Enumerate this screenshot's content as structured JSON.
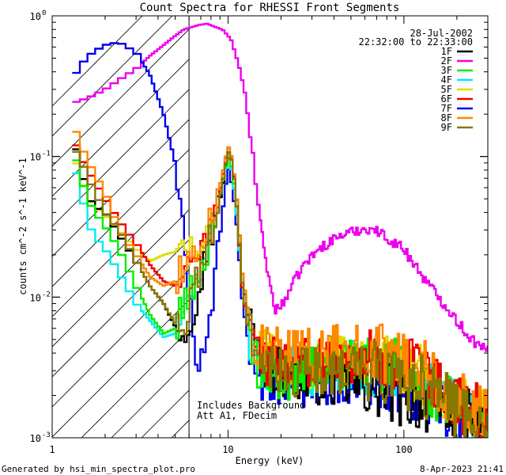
{
  "chart_data": {
    "type": "line",
    "title": "Count Spectra for RHESSI Front Segments",
    "xlabel": "Energy (keV)",
    "ylabel": "counts cm^-2 s^-1 keV^-1",
    "xscale": "log",
    "yscale": "log",
    "xlim": [
      1.0,
      300.0
    ],
    "ylim": [
      0.001,
      1.0
    ],
    "x_tick_labels": [
      {
        "value": 1,
        "label": "1"
      },
      {
        "value": 10,
        "label": "10"
      },
      {
        "value": 100,
        "label": "100"
      }
    ],
    "y_tick_labels": [
      {
        "value": 1,
        "base": "10",
        "exp": "0"
      },
      {
        "value": 0.1,
        "base": "10",
        "exp": "-1"
      },
      {
        "value": 0.01,
        "base": "10",
        "exp": "-2"
      },
      {
        "value": 0.001,
        "base": "10",
        "exp": "-3"
      }
    ],
    "date": "28-Jul-2002",
    "time_range": "22:32:00 to 22:33:00",
    "attenuator_boundary_keV": 6.0,
    "annotations": [
      "Includes Background",
      "Att A1, FDecim"
    ],
    "legend_position": "top-right",
    "series": [
      {
        "name": "1F",
        "color": "#000000",
        "anchors": [
          [
            1.3,
            0.15
          ],
          [
            1.45,
            0.08
          ],
          [
            1.7,
            0.045
          ],
          [
            2.0,
            0.04
          ],
          [
            2.4,
            0.028
          ],
          [
            3.0,
            0.018
          ],
          [
            3.6,
            0.012
          ],
          [
            4.3,
            0.009
          ],
          [
            5.0,
            0.0062
          ],
          [
            5.6,
            0.0055
          ],
          [
            6.5,
            0.009
          ],
          [
            7.5,
            0.02
          ],
          [
            8.5,
            0.035
          ],
          [
            9.3,
            0.06
          ],
          [
            10.0,
            0.11
          ],
          [
            10.6,
            0.09
          ],
          [
            11.3,
            0.045
          ],
          [
            12.0,
            0.015
          ],
          [
            13.0,
            0.007
          ],
          [
            14.5,
            0.004
          ],
          [
            17.0,
            0.0032
          ],
          [
            22.0,
            0.0028
          ],
          [
            30.0,
            0.0026
          ],
          [
            40.0,
            0.0025
          ],
          [
            60.0,
            0.0023
          ],
          [
            90.0,
            0.002
          ],
          [
            130.0,
            0.0018
          ],
          [
            180.0,
            0.0016
          ],
          [
            250.0,
            0.0014
          ]
        ]
      },
      {
        "name": "2F",
        "color": "#ee00ee",
        "anchors": [
          [
            1.3,
            0.24
          ],
          [
            1.45,
            0.25
          ],
          [
            1.7,
            0.27
          ],
          [
            2.0,
            0.3
          ],
          [
            2.4,
            0.35
          ],
          [
            3.0,
            0.42
          ],
          [
            3.6,
            0.52
          ],
          [
            4.3,
            0.62
          ],
          [
            5.0,
            0.72
          ],
          [
            5.6,
            0.8
          ],
          [
            6.0,
            0.82
          ],
          [
            6.8,
            0.86
          ],
          [
            7.6,
            0.88
          ],
          [
            8.3,
            0.84
          ],
          [
            9.3,
            0.8
          ],
          [
            10.4,
            0.68
          ],
          [
            11.5,
            0.45
          ],
          [
            12.5,
            0.28
          ],
          [
            13.5,
            0.13
          ],
          [
            14.5,
            0.06
          ],
          [
            15.5,
            0.03
          ],
          [
            16.8,
            0.015
          ],
          [
            18.5,
            0.0082
          ],
          [
            20.0,
            0.0085
          ],
          [
            23.0,
            0.012
          ],
          [
            27.0,
            0.017
          ],
          [
            33.0,
            0.022
          ],
          [
            42.0,
            0.027
          ],
          [
            55.0,
            0.03
          ],
          [
            65.0,
            0.031
          ],
          [
            75.0,
            0.028
          ],
          [
            100.0,
            0.022
          ],
          [
            140.0,
            0.012
          ],
          [
            180.0,
            0.0082
          ],
          [
            220.0,
            0.0058
          ],
          [
            270.0,
            0.0044
          ],
          [
            300.0,
            0.0041
          ]
        ]
      },
      {
        "name": "3F",
        "color": "#00ee00",
        "anchors": [
          [
            1.3,
            0.12
          ],
          [
            1.45,
            0.07
          ],
          [
            1.7,
            0.042
          ],
          [
            2.0,
            0.032
          ],
          [
            2.4,
            0.022
          ],
          [
            3.0,
            0.012
          ],
          [
            3.6,
            0.0075
          ],
          [
            4.3,
            0.0055
          ],
          [
            5.0,
            0.006
          ],
          [
            5.6,
            0.009
          ],
          [
            6.5,
            0.012
          ],
          [
            7.5,
            0.02
          ],
          [
            8.5,
            0.04
          ],
          [
            9.3,
            0.065
          ],
          [
            10.0,
            0.1
          ],
          [
            10.6,
            0.08
          ],
          [
            11.3,
            0.04
          ],
          [
            12.0,
            0.012
          ],
          [
            13.0,
            0.006
          ],
          [
            14.5,
            0.0035
          ],
          [
            17.0,
            0.003
          ],
          [
            22.0,
            0.0028
          ],
          [
            30.0,
            0.003
          ],
          [
            40.0,
            0.0032
          ],
          [
            60.0,
            0.0035
          ],
          [
            90.0,
            0.0032
          ],
          [
            130.0,
            0.0024
          ],
          [
            180.0,
            0.0018
          ],
          [
            250.0,
            0.0014
          ]
        ]
      },
      {
        "name": "4F",
        "color": "#00eeee",
        "anchors": [
          [
            1.3,
            0.1
          ],
          [
            1.45,
            0.055
          ],
          [
            1.7,
            0.028
          ],
          [
            2.0,
            0.022
          ],
          [
            2.4,
            0.015
          ],
          [
            3.0,
            0.009
          ],
          [
            3.6,
            0.0068
          ],
          [
            4.3,
            0.0052
          ],
          [
            5.0,
            0.0055
          ],
          [
            5.6,
            0.008
          ],
          [
            6.5,
            0.012
          ],
          [
            7.5,
            0.022
          ],
          [
            8.5,
            0.04
          ],
          [
            9.3,
            0.06
          ],
          [
            10.0,
            0.1
          ],
          [
            10.6,
            0.075
          ],
          [
            11.3,
            0.035
          ],
          [
            12.0,
            0.012
          ],
          [
            13.0,
            0.006
          ],
          [
            14.5,
            0.0038
          ],
          [
            17.0,
            0.003
          ],
          [
            22.0,
            0.003
          ],
          [
            30.0,
            0.003
          ],
          [
            40.0,
            0.0033
          ],
          [
            60.0,
            0.0032
          ],
          [
            90.0,
            0.003
          ],
          [
            130.0,
            0.0024
          ],
          [
            180.0,
            0.0018
          ],
          [
            250.0,
            0.0014
          ]
        ]
      },
      {
        "name": "5F",
        "color": "#dddd00",
        "anchors": [
          [
            1.3,
            0.11
          ],
          [
            1.45,
            0.07
          ],
          [
            1.7,
            0.045
          ],
          [
            2.0,
            0.038
          ],
          [
            2.4,
            0.03
          ],
          [
            3.0,
            0.022
          ],
          [
            3.6,
            0.018
          ],
          [
            4.3,
            0.02
          ],
          [
            5.0,
            0.021
          ],
          [
            5.6,
            0.02
          ],
          [
            6.5,
            0.021
          ],
          [
            7.5,
            0.024
          ],
          [
            8.5,
            0.035
          ],
          [
            9.3,
            0.06
          ],
          [
            10.0,
            0.11
          ],
          [
            10.6,
            0.09
          ],
          [
            11.3,
            0.045
          ],
          [
            12.0,
            0.015
          ],
          [
            13.0,
            0.007
          ],
          [
            14.5,
            0.0045
          ],
          [
            17.0,
            0.0038
          ],
          [
            22.0,
            0.0033
          ],
          [
            30.0,
            0.0034
          ],
          [
            40.0,
            0.0035
          ],
          [
            60.0,
            0.0036
          ],
          [
            90.0,
            0.0033
          ],
          [
            130.0,
            0.0027
          ],
          [
            180.0,
            0.002
          ],
          [
            250.0,
            0.0015
          ]
        ]
      },
      {
        "name": "6F",
        "color": "#ee0000",
        "anchors": [
          [
            1.3,
            0.14
          ],
          [
            1.45,
            0.1
          ],
          [
            1.7,
            0.07
          ],
          [
            2.0,
            0.05
          ],
          [
            2.4,
            0.035
          ],
          [
            3.0,
            0.024
          ],
          [
            3.6,
            0.017
          ],
          [
            4.3,
            0.013
          ],
          [
            5.0,
            0.012
          ],
          [
            5.6,
            0.016
          ],
          [
            6.5,
            0.02
          ],
          [
            7.5,
            0.025
          ],
          [
            8.5,
            0.04
          ],
          [
            9.3,
            0.07
          ],
          [
            10.0,
            0.12
          ],
          [
            10.6,
            0.09
          ],
          [
            11.3,
            0.04
          ],
          [
            12.0,
            0.012
          ],
          [
            13.0,
            0.006
          ],
          [
            14.5,
            0.004
          ],
          [
            17.0,
            0.0035
          ],
          [
            22.0,
            0.0033
          ],
          [
            30.0,
            0.0035
          ],
          [
            40.0,
            0.0037
          ],
          [
            60.0,
            0.0037
          ],
          [
            90.0,
            0.0034
          ],
          [
            130.0,
            0.0028
          ],
          [
            180.0,
            0.002
          ],
          [
            250.0,
            0.0015
          ]
        ]
      },
      {
        "name": "7F",
        "color": "#0000ee",
        "anchors": [
          [
            1.3,
            0.35
          ],
          [
            1.45,
            0.45
          ],
          [
            1.7,
            0.55
          ],
          [
            2.0,
            0.62
          ],
          [
            2.4,
            0.65
          ],
          [
            3.0,
            0.55
          ],
          [
            3.6,
            0.38
          ],
          [
            4.3,
            0.2
          ],
          [
            5.0,
            0.09
          ],
          [
            5.6,
            0.03
          ],
          [
            6.0,
            0.01
          ],
          [
            6.5,
            0.004
          ],
          [
            7.3,
            0.003
          ],
          [
            8.3,
            0.01
          ],
          [
            9.3,
            0.04
          ],
          [
            10.0,
            0.085
          ],
          [
            10.6,
            0.06
          ],
          [
            11.3,
            0.03
          ],
          [
            12.0,
            0.01
          ],
          [
            13.0,
            0.005
          ],
          [
            14.5,
            0.003
          ],
          [
            17.0,
            0.0025
          ],
          [
            22.0,
            0.0024
          ],
          [
            30.0,
            0.0025
          ],
          [
            40.0,
            0.0026
          ],
          [
            60.0,
            0.0027
          ],
          [
            90.0,
            0.0025
          ],
          [
            130.0,
            0.002
          ],
          [
            180.0,
            0.0016
          ],
          [
            250.0,
            0.0013
          ]
        ]
      },
      {
        "name": "8F",
        "color": "#ff8800",
        "anchors": [
          [
            1.3,
            0.18
          ],
          [
            1.45,
            0.12
          ],
          [
            1.7,
            0.08
          ],
          [
            2.0,
            0.055
          ],
          [
            2.4,
            0.03
          ],
          [
            3.0,
            0.02
          ],
          [
            3.6,
            0.014
          ],
          [
            4.3,
            0.012
          ],
          [
            5.0,
            0.013
          ],
          [
            5.6,
            0.017
          ],
          [
            6.5,
            0.022
          ],
          [
            7.5,
            0.028
          ],
          [
            8.5,
            0.045
          ],
          [
            9.3,
            0.075
          ],
          [
            10.0,
            0.12
          ],
          [
            10.6,
            0.095
          ],
          [
            11.3,
            0.045
          ],
          [
            12.0,
            0.015
          ],
          [
            13.0,
            0.008
          ],
          [
            14.5,
            0.005
          ],
          [
            17.0,
            0.0042
          ],
          [
            22.0,
            0.004
          ],
          [
            30.0,
            0.004
          ],
          [
            40.0,
            0.0042
          ],
          [
            60.0,
            0.0042
          ],
          [
            90.0,
            0.0037
          ],
          [
            130.0,
            0.003
          ],
          [
            180.0,
            0.0021
          ],
          [
            250.0,
            0.0016
          ]
        ]
      },
      {
        "name": "9F",
        "color": "#887700",
        "anchors": [
          [
            1.3,
            0.12
          ],
          [
            1.45,
            0.095
          ],
          [
            1.7,
            0.06
          ],
          [
            2.0,
            0.04
          ],
          [
            2.4,
            0.03
          ],
          [
            3.0,
            0.018
          ],
          [
            3.6,
            0.012
          ],
          [
            4.3,
            0.009
          ],
          [
            5.0,
            0.0065
          ],
          [
            5.6,
            0.006
          ],
          [
            6.5,
            0.012
          ],
          [
            7.5,
            0.02
          ],
          [
            8.5,
            0.035
          ],
          [
            9.3,
            0.065
          ],
          [
            10.0,
            0.11
          ],
          [
            10.6,
            0.09
          ],
          [
            11.3,
            0.04
          ],
          [
            12.0,
            0.013
          ],
          [
            13.0,
            0.006
          ],
          [
            14.5,
            0.0035
          ],
          [
            17.0,
            0.003
          ],
          [
            22.0,
            0.0028
          ],
          [
            30.0,
            0.003
          ],
          [
            40.0,
            0.0031
          ],
          [
            60.0,
            0.003
          ],
          [
            90.0,
            0.0028
          ],
          [
            130.0,
            0.0023
          ],
          [
            180.0,
            0.0017
          ],
          [
            250.0,
            0.0013
          ]
        ]
      }
    ]
  },
  "footer": {
    "generated_by": "Generated by hsi_min_spectra_plot.pro",
    "timestamp": "8-Apr-2023 21:41"
  }
}
